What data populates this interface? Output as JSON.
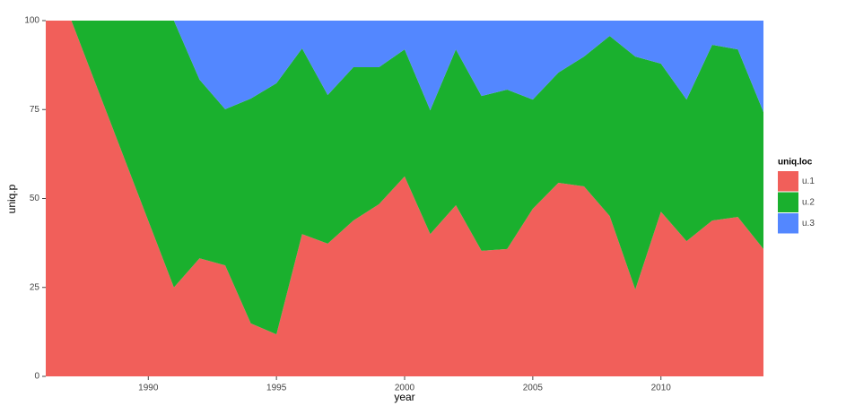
{
  "chart_data": {
    "type": "stacked-area",
    "x_label": "year",
    "y_label": "uniq.p",
    "x": [
      1986,
      1987,
      1988,
      1989,
      1990,
      1991,
      1992,
      1993,
      1994,
      1995,
      1996,
      1997,
      1998,
      1999,
      2000,
      2001,
      2002,
      2003,
      2004,
      2005,
      2006,
      2007,
      2008,
      2009,
      2010,
      2011,
      2012,
      2013,
      2014
    ],
    "series": [
      {
        "name": "u.1",
        "color": "#f15f5a",
        "values": [
          100,
          100,
          81.25,
          62.5,
          43.75,
          25,
          33.2,
          31.2,
          14.9,
          11.8,
          40,
          37.3,
          43.8,
          48.4,
          56.2,
          40,
          48.1,
          35.3,
          35.8,
          47.1,
          54.4,
          53.4,
          45.1,
          24.4,
          46.3,
          38,
          43.8,
          44.8,
          35.8
        ]
      },
      {
        "name": "u.2",
        "color": "#1ab02e",
        "values": [
          0,
          0,
          18.75,
          37.5,
          56.25,
          75,
          50.2,
          43.9,
          63.2,
          70.6,
          52.2,
          41.8,
          43.1,
          38.5,
          35.7,
          34.8,
          43.8,
          43.5,
          44.8,
          30.7,
          31,
          36.5,
          50.6,
          65.5,
          41.6,
          39.8,
          49.4,
          47.1,
          38.5
        ]
      },
      {
        "name": "u.3",
        "color": "#5387ff",
        "values": [
          0,
          0,
          0,
          0,
          0,
          0,
          16.6,
          24.9,
          21.9,
          17.6,
          7.8,
          20.9,
          13.1,
          13.1,
          8.1,
          25.2,
          8.1,
          21.2,
          19.4,
          22.2,
          14.6,
          10.1,
          4.3,
          10.1,
          12.1,
          22.2,
          6.8,
          8.1,
          25.7
        ]
      }
    ],
    "legend_title": "uniq.loc",
    "xlim": [
      1986,
      2014
    ],
    "xticks": [
      1990,
      1995,
      2000,
      2005,
      2010
    ],
    "ylim": [
      0,
      100
    ],
    "yticks": [
      0,
      25,
      50,
      75,
      100
    ]
  }
}
